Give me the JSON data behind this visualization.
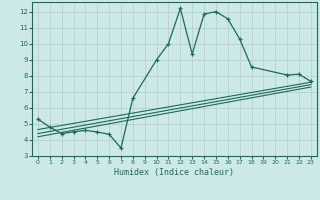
{
  "xlabel": "Humidex (Indice chaleur)",
  "background_color": "#cde8e8",
  "line_color": "#1a6b5a",
  "grid_color": "#b8d4d4",
  "xlim": [
    -0.5,
    23.5
  ],
  "ylim": [
    3,
    12.6
  ],
  "x_ticks": [
    0,
    1,
    2,
    3,
    4,
    5,
    6,
    7,
    8,
    9,
    10,
    11,
    12,
    13,
    14,
    15,
    16,
    17,
    18,
    19,
    20,
    21,
    22,
    23
  ],
  "y_ticks": [
    3,
    4,
    5,
    6,
    7,
    8,
    9,
    10,
    11,
    12
  ],
  "main_x": [
    0,
    1,
    2,
    3,
    4,
    5,
    6,
    7,
    8,
    10,
    11,
    12,
    13,
    14,
    15,
    16,
    17,
    18,
    21,
    22,
    23
  ],
  "main_y": [
    5.3,
    4.8,
    4.4,
    4.5,
    4.6,
    4.5,
    4.35,
    3.5,
    6.6,
    9.0,
    10.0,
    12.2,
    9.35,
    11.85,
    12.0,
    11.55,
    10.3,
    8.55,
    8.05,
    8.1,
    7.65
  ],
  "line1_x": [
    0,
    23
  ],
  "line1_y": [
    4.2,
    7.3
  ],
  "line2_x": [
    0,
    23
  ],
  "line2_y": [
    4.4,
    7.45
  ],
  "line3_x": [
    0,
    23
  ],
  "line3_y": [
    4.65,
    7.6
  ]
}
